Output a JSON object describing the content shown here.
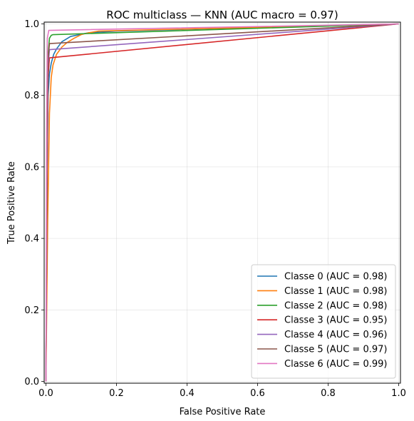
{
  "chart_data": {
    "type": "line",
    "title": "ROC multiclass — KNN (AUC macro = 0.97)",
    "xlabel": "False Positive Rate",
    "ylabel": "True Positive Rate",
    "xlim": [
      -0.005,
      1.005
    ],
    "ylim": [
      -0.005,
      1.005
    ],
    "xticks": [
      0.0,
      0.2,
      0.4,
      0.6,
      0.8,
      1.0
    ],
    "yticks": [
      0.0,
      0.2,
      0.4,
      0.6,
      0.8,
      1.0
    ],
    "xtick_labels": [
      "0.0",
      "0.2",
      "0.4",
      "0.6",
      "0.8",
      "1.0"
    ],
    "ytick_labels": [
      "0.0",
      "0.2",
      "0.4",
      "0.6",
      "0.8",
      "1.0"
    ],
    "grid": true,
    "legend_position": "lower-right",
    "series": [
      {
        "name": "Classe 0 (AUC = 0.98)",
        "color": "#1f77b4",
        "x": [
          0,
          0.003,
          0.006,
          0.01,
          0.015,
          0.022,
          0.03,
          0.045,
          0.07,
          0.12,
          0.2,
          1.0
        ],
        "y": [
          0,
          0.55,
          0.8,
          0.86,
          0.89,
          0.915,
          0.93,
          0.95,
          0.965,
          0.975,
          0.98,
          1.0
        ]
      },
      {
        "name": "Classe 1 (AUC = 0.98)",
        "color": "#ff7f0e",
        "x": [
          0,
          0.005,
          0.01,
          0.015,
          0.02,
          0.03,
          0.045,
          0.06,
          0.08,
          0.1,
          0.12,
          0.15,
          1.0
        ],
        "y": [
          0,
          0.45,
          0.75,
          0.85,
          0.885,
          0.915,
          0.935,
          0.948,
          0.96,
          0.97,
          0.975,
          0.98,
          1.0
        ]
      },
      {
        "name": "Classe 2 (AUC = 0.98)",
        "color": "#2ca02c",
        "x": [
          0,
          0.005,
          0.01,
          0.015,
          0.02,
          1.0
        ],
        "y": [
          0,
          0.9,
          0.96,
          0.968,
          0.97,
          1.0
        ]
      },
      {
        "name": "Classe 3 (AUC = 0.95)",
        "color": "#d62728",
        "x": [
          0,
          0.003,
          0.006,
          0.01,
          1.0
        ],
        "y": [
          0,
          0.55,
          0.85,
          0.905,
          1.0
        ]
      },
      {
        "name": "Classe 4 (AUC = 0.96)",
        "color": "#9467bd",
        "x": [
          0,
          0.003,
          0.006,
          0.01,
          1.0
        ],
        "y": [
          0,
          0.6,
          0.88,
          0.928,
          1.0
        ]
      },
      {
        "name": "Classe 5 (AUC = 0.97)",
        "color": "#8c564b",
        "x": [
          0,
          0.003,
          0.006,
          0.01,
          1.0
        ],
        "y": [
          0,
          0.6,
          0.9,
          0.945,
          1.0
        ]
      },
      {
        "name": "Classe 6 (AUC = 0.99)",
        "color": "#e377c2",
        "x": [
          0,
          0.002,
          0.004,
          0.008,
          1.0
        ],
        "y": [
          0,
          0.7,
          0.96,
          0.982,
          1.0
        ]
      }
    ]
  }
}
